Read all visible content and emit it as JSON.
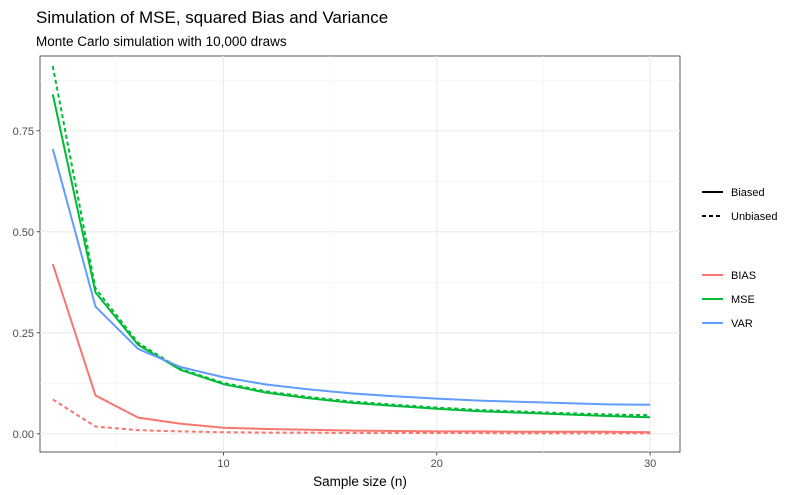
{
  "chart_data": {
    "type": "line",
    "title": "Simulation of MSE, squared Bias and Variance",
    "subtitle": "Monte Carlo simulation with 10,000 draws",
    "xlabel": "Sample size (n)",
    "ylabel": "",
    "xlim": [
      1.4,
      31.4
    ],
    "ylim": [
      -0.045,
      0.935
    ],
    "x_ticks": [
      10,
      20,
      30
    ],
    "x_minor_ticks": [
      5,
      15,
      25
    ],
    "y_ticks": [
      0.0,
      0.25,
      0.5,
      0.75
    ],
    "y_tick_labels": [
      "0.00",
      "0.25",
      "0.50",
      "0.75"
    ],
    "y_minor_ticks": [
      0.125,
      0.375,
      0.625,
      0.875
    ],
    "grid": true,
    "legend_position": "right",
    "x": [
      2,
      4,
      6,
      8,
      10,
      12,
      14,
      16,
      18,
      20,
      22,
      24,
      26,
      28,
      30
    ],
    "linetype_legend": [
      {
        "label": "Biased",
        "dash": "solid"
      },
      {
        "label": "Unbiased",
        "dash": "dashed"
      }
    ],
    "color_legend": [
      {
        "label": "BIAS",
        "color": "#F8766D"
      },
      {
        "label": "MSE",
        "color": "#00BA38"
      },
      {
        "label": "VAR",
        "color": "#619CFF"
      }
    ],
    "series": [
      {
        "measure": "BIAS",
        "estimator": "Biased",
        "color": "#F8766D",
        "dash": "solid",
        "values": [
          0.42,
          0.095,
          0.04,
          0.025,
          0.015,
          0.012,
          0.01,
          0.008,
          0.007,
          0.006,
          0.006,
          0.005,
          0.005,
          0.005,
          0.004
        ]
      },
      {
        "measure": "BIAS",
        "estimator": "Unbiased",
        "color": "#F8766D",
        "dash": "dashed",
        "values": [
          0.085,
          0.018,
          0.009,
          0.006,
          0.004,
          0.003,
          0.003,
          0.002,
          0.002,
          0.002,
          0.002,
          0.001,
          0.001,
          0.001,
          0.001
        ]
      },
      {
        "measure": "MSE",
        "estimator": "Biased",
        "color": "#00BA38",
        "dash": "solid",
        "values": [
          0.84,
          0.35,
          0.22,
          0.158,
          0.123,
          0.102,
          0.088,
          0.077,
          0.069,
          0.062,
          0.056,
          0.052,
          0.048,
          0.044,
          0.041
        ]
      },
      {
        "measure": "MSE",
        "estimator": "Unbiased",
        "color": "#00BA38",
        "dash": "dashed",
        "values": [
          0.91,
          0.36,
          0.225,
          0.16,
          0.126,
          0.105,
          0.091,
          0.08,
          0.072,
          0.065,
          0.059,
          0.055,
          0.051,
          0.048,
          0.046
        ]
      },
      {
        "measure": "VAR",
        "estimator": "Biased",
        "color": "#619CFF",
        "dash": "solid",
        "values": [
          0.705,
          0.315,
          0.21,
          0.165,
          0.14,
          0.122,
          0.11,
          0.1,
          0.093,
          0.087,
          0.082,
          0.079,
          0.076,
          0.073,
          0.072
        ]
      }
    ]
  }
}
